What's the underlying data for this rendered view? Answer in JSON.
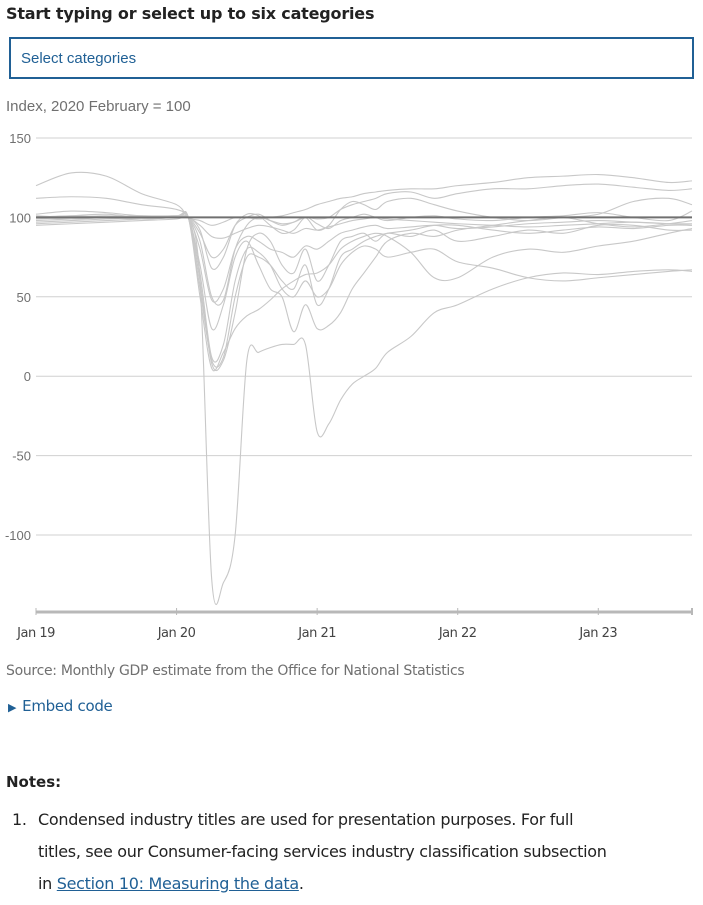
{
  "title": "Start typing or select up to six categories",
  "select": {
    "placeholder": "Select categories"
  },
  "source": "Source: Monthly GDP estimate from the Office for National Statistics",
  "embed": {
    "icon": "triangle-right-icon",
    "label": "Embed code"
  },
  "notes": {
    "heading": "Notes:",
    "items": [
      {
        "number": "1.",
        "text_before": "Condensed industry titles are used for presentation purposes. For full titles, see our Consumer-facing services industry classification subsection in ",
        "link": "Section 10: Measuring the data",
        "text_after": "."
      }
    ]
  },
  "colors": {
    "accent": "#206095",
    "series": "#c8c8c8",
    "reference": "#707070",
    "grid": "#d0d0d0"
  },
  "chart_data": {
    "type": "line",
    "ylabel": "Index, 2020 February = 100",
    "ylim": [
      -150,
      150
    ],
    "yticks": [
      150,
      100,
      50,
      0,
      -50,
      -100
    ],
    "xticks": [
      {
        "date": "2019-01",
        "label": "Jan 19"
      },
      {
        "date": "2020-01",
        "label": "Jan 20"
      },
      {
        "date": "2021-01",
        "label": "Jan 21"
      },
      {
        "date": "2022-01",
        "label": "Jan 22"
      },
      {
        "date": "2023-01",
        "label": "Jan 23"
      }
    ],
    "xlim": [
      "2019-01",
      "2023-09"
    ],
    "grid": true,
    "reference_line": 100,
    "x": [
      "2019-01",
      "2019-04",
      "2019-07",
      "2019-10",
      "2020-01",
      "2020-02",
      "2020-03",
      "2020-04",
      "2020-05",
      "2020-06",
      "2020-07",
      "2020-08",
      "2020-09",
      "2020-10",
      "2020-11",
      "2020-12",
      "2021-01",
      "2021-02",
      "2021-03",
      "2021-04",
      "2021-05",
      "2021-06",
      "2021-07",
      "2021-09",
      "2021-11",
      "2022-01",
      "2022-04",
      "2022-07",
      "2022-10",
      "2023-01",
      "2023-04",
      "2023-07",
      "2023-09"
    ],
    "series": [
      {
        "values": [
          100,
          101,
          102,
          100,
          101,
          100,
          60,
          -128,
          -130,
          -100,
          10,
          15,
          18,
          20,
          20,
          20,
          -35,
          -30,
          -15,
          -5,
          0,
          5,
          15,
          25,
          40,
          45,
          55,
          62,
          65,
          64,
          66,
          67,
          66
        ]
      },
      {
        "values": [
          120,
          128,
          126,
          115,
          108,
          100,
          98,
          95,
          97,
          100,
          100,
          99,
          100,
          101,
          103,
          105,
          108,
          110,
          112,
          113,
          115,
          116,
          117,
          118,
          118,
          120,
          122,
          125,
          126,
          127,
          125,
          122,
          123
        ]
      },
      {
        "values": [
          112,
          113,
          112,
          108,
          105,
          100,
          85,
          50,
          48,
          80,
          95,
          100,
          98,
          96,
          97,
          100,
          99,
          100,
          105,
          108,
          110,
          112,
          115,
          116,
          112,
          115,
          118,
          118,
          120,
          121,
          119,
          117,
          118
        ]
      },
      {
        "values": [
          102,
          104,
          103,
          101,
          101,
          100,
          92,
          68,
          75,
          95,
          102,
          101,
          95,
          90,
          92,
          100,
          96,
          93,
          98,
          100,
          102,
          100,
          98,
          100,
          101,
          99,
          98,
          100,
          101,
          103,
          100,
          98,
          104
        ]
      },
      {
        "values": [
          98,
          99,
          100,
          99,
          100,
          100,
          60,
          8,
          10,
          40,
          80,
          90,
          85,
          70,
          65,
          80,
          60,
          70,
          85,
          88,
          90,
          85,
          90,
          88,
          92,
          85,
          88,
          92,
          90,
          95,
          95,
          92,
          92
        ]
      },
      {
        "values": [
          97,
          98,
          99,
          100,
          101,
          100,
          55,
          10,
          12,
          50,
          75,
          75,
          70,
          60,
          55,
          70,
          45,
          55,
          75,
          80,
          85,
          88,
          90,
          92,
          95,
          95,
          92,
          90,
          92,
          94,
          93,
          95,
          95
        ]
      },
      {
        "values": [
          99,
          100,
          101,
          100,
          100,
          100,
          70,
          30,
          45,
          75,
          85,
          70,
          55,
          50,
          28,
          45,
          30,
          32,
          40,
          55,
          65,
          75,
          85,
          90,
          88,
          92,
          95,
          98,
          100,
          96,
          94,
          96,
          98
        ]
      },
      {
        "values": [
          100,
          101,
          100,
          99,
          100,
          100,
          50,
          5,
          15,
          30,
          38,
          42,
          48,
          55,
          60,
          64,
          65,
          70,
          80,
          85,
          88,
          90,
          88,
          78,
          62,
          62,
          75,
          80,
          78,
          82,
          85,
          90,
          93
        ]
      },
      {
        "values": [
          95,
          96,
          97,
          98,
          99,
          100,
          80,
          48,
          55,
          80,
          88,
          85,
          80,
          78,
          75,
          82,
          80,
          85,
          90,
          92,
          94,
          95,
          93,
          94,
          95,
          93,
          94,
          96,
          97,
          98,
          97,
          96,
          96
        ]
      },
      {
        "values": [
          101,
          100,
          100,
          101,
          100,
          100,
          95,
          88,
          87,
          90,
          93,
          95,
          94,
          92,
          90,
          93,
          92,
          94,
          96,
          98,
          99,
          100,
          99,
          98,
          97,
          96,
          95,
          94,
          95,
          96,
          97,
          96,
          95
        ]
      },
      {
        "values": [
          100,
          99,
          100,
          101,
          100,
          100,
          65,
          12,
          20,
          60,
          80,
          78,
          70,
          55,
          50,
          60,
          50,
          55,
          70,
          78,
          82,
          80,
          75,
          78,
          80,
          72,
          68,
          62,
          60,
          62,
          64,
          66,
          67
        ]
      },
      {
        "values": [
          96,
          97,
          98,
          99,
          100,
          100,
          90,
          75,
          80,
          95,
          100,
          102,
          98,
          95,
          97,
          100,
          92,
          95,
          105,
          110,
          108,
          105,
          110,
          112,
          108,
          104,
          100,
          98,
          100,
          102,
          110,
          112,
          108
        ]
      }
    ]
  }
}
